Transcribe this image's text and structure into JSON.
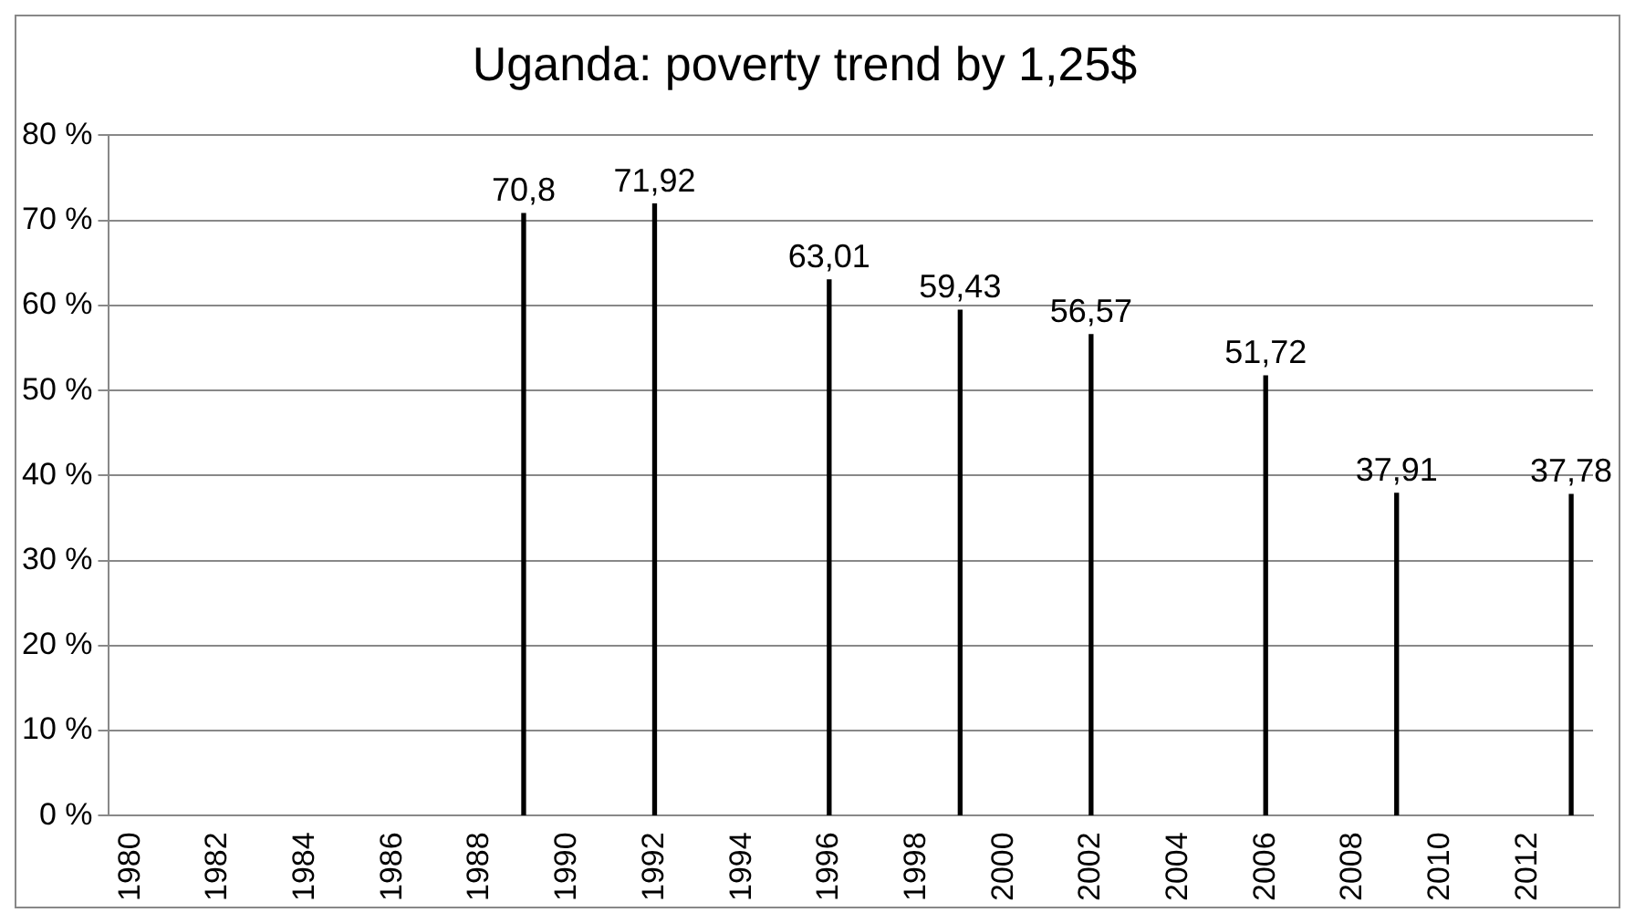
{
  "chart_data": {
    "type": "bar",
    "title": "Uganda: poverty trend by 1,25$",
    "categories": [
      "1980",
      null,
      "1982",
      null,
      "1984",
      null,
      "1986",
      null,
      "1988",
      null,
      "1990",
      null,
      "1992",
      null,
      "1994",
      null,
      "1996",
      null,
      "1998",
      null,
      "2000",
      null,
      "2002",
      null,
      "2004",
      null,
      "2006",
      null,
      "2008",
      null,
      "2010",
      null,
      "2012",
      null
    ],
    "values": [
      null,
      null,
      null,
      null,
      null,
      null,
      null,
      null,
      null,
      70.8,
      null,
      null,
      71.92,
      null,
      null,
      null,
      63.01,
      null,
      null,
      59.43,
      null,
      null,
      56.57,
      null,
      null,
      null,
      51.72,
      null,
      null,
      37.91,
      null,
      null,
      null,
      37.78
    ],
    "value_labels": [
      null,
      null,
      null,
      null,
      null,
      null,
      null,
      null,
      null,
      "70,8",
      null,
      null,
      "71,92",
      null,
      null,
      null,
      "63,01",
      null,
      null,
      "59,43",
      null,
      null,
      "56,57",
      null,
      null,
      null,
      "51,72",
      null,
      null,
      "37,91",
      null,
      null,
      null,
      "37,78"
    ],
    "color": "#000000",
    "ylim": [
      0,
      80
    ],
    "yticks": [
      {
        "value": 0,
        "label": "0 %"
      },
      {
        "value": 10,
        "label": "10 %"
      },
      {
        "value": 20,
        "label": "20 %"
      },
      {
        "value": 30,
        "label": "30 %"
      },
      {
        "value": 40,
        "label": "40 %"
      },
      {
        "value": 50,
        "label": "50 %"
      },
      {
        "value": 60,
        "label": "60 %"
      },
      {
        "value": 70,
        "label": "70 %"
      },
      {
        "value": 80,
        "label": "80 %"
      }
    ],
    "grid": "y",
    "legend": false
  }
}
